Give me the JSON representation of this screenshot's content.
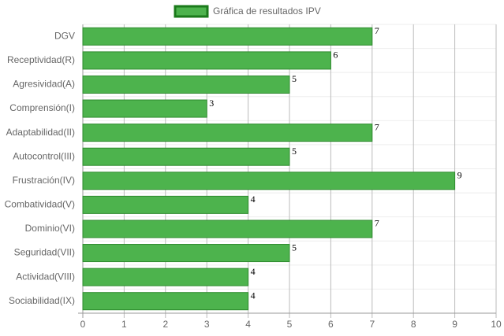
{
  "chart_data": {
    "type": "bar",
    "orientation": "horizontal",
    "legend": "Gráfica de resultados IPV",
    "categories": [
      "DGV",
      "Receptividad(R)",
      "Agresividad(A)",
      "Comprensión(I)",
      "Adaptabilidad(II)",
      "Autocontrol(III)",
      "Frustración(IV)",
      "Combatividad(V)",
      "Dominio(VI)",
      "Seguridad(VII)",
      "Actividad(VIII)",
      "Sociabilidad(IX)"
    ],
    "values": [
      7,
      6,
      5,
      3,
      7,
      5,
      9,
      4,
      7,
      5,
      4,
      4
    ],
    "color": "#4db34d",
    "border_color": "#2e8b2e",
    "xlim": [
      0,
      10
    ],
    "xticks": [
      0,
      1,
      2,
      3,
      4,
      5,
      6,
      7,
      8,
      9,
      10
    ],
    "grid": true
  }
}
